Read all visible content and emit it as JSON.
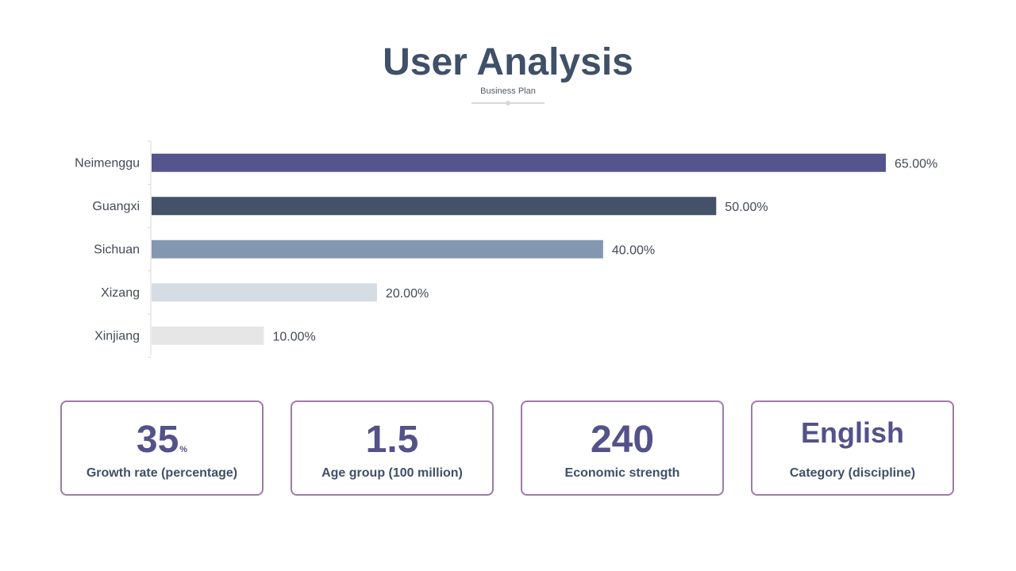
{
  "header": {
    "title": "User Analysis",
    "subtitle": "Business Plan"
  },
  "chart_data": {
    "type": "bar",
    "orientation": "horizontal",
    "categories": [
      "Neimenggu",
      "Guangxi",
      "Sichuan",
      "Xizang",
      "Xinjiang"
    ],
    "values": [
      65,
      50,
      40,
      20,
      10
    ],
    "value_labels": [
      "65.00%",
      "50.00%",
      "40.00%",
      "20.00%",
      "10.00%"
    ],
    "bar_colors": [
      "#55548c",
      "#435268",
      "#8497b0",
      "#d6dce4",
      "#e7e6e6"
    ],
    "xlim": [
      0,
      65
    ],
    "grid": false,
    "legend": "none"
  },
  "stats": [
    {
      "value": "35",
      "unit": "%",
      "label": "Growth rate (percentage)"
    },
    {
      "value": "1.5",
      "unit": "",
      "label": "Age group (100 million)"
    },
    {
      "value": "240",
      "unit": "",
      "label": "Economic strength"
    },
    {
      "value": "English",
      "unit": "",
      "label": "Category (discipline)"
    }
  ],
  "colors": {
    "title": "#3f5068",
    "accent": "#535289",
    "card_border": "#a07aa8"
  }
}
